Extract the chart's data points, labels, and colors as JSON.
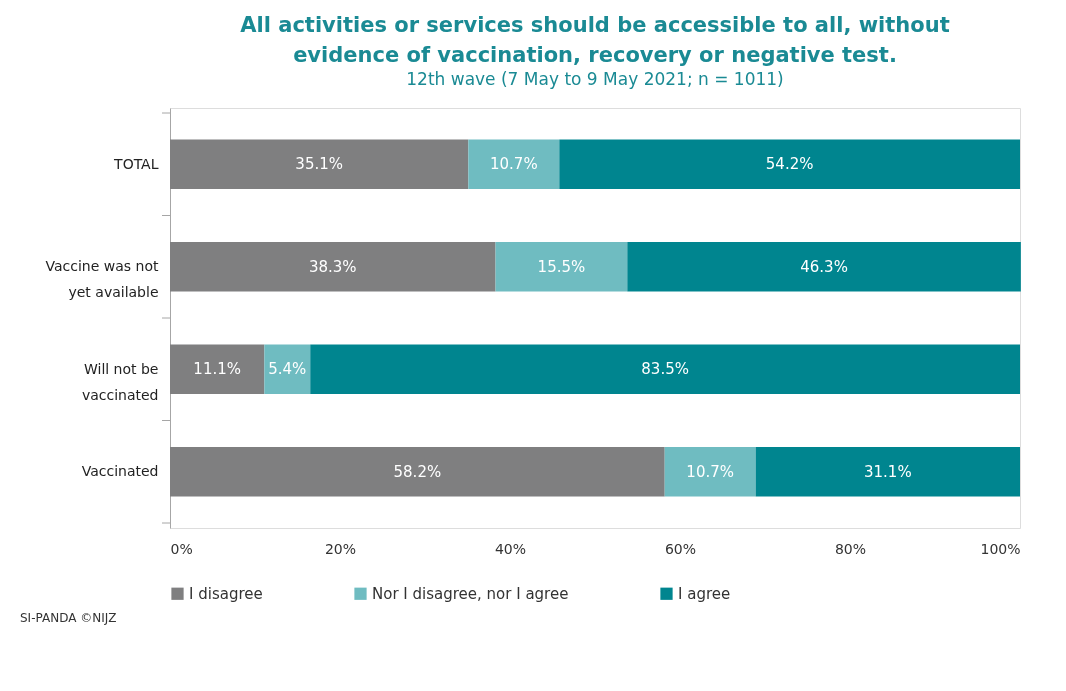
{
  "chart_data": {
    "type": "bar",
    "orientation": "horizontal",
    "stacked": true,
    "title": "All activities or services should be accessible to all, without evidence of vaccination, recovery or negative test.",
    "subtitle": "12th wave (7 May to 9 May 2021; n = 1011)",
    "categories": [
      "TOTAL",
      "Vaccine was not yet available",
      "Will not be vaccinated",
      "Vaccinated"
    ],
    "series": [
      {
        "name": "I disagree",
        "color": "#7f7f80",
        "values": [
          35.1,
          38.3,
          11.1,
          58.2
        ]
      },
      {
        "name": "Nor I disagree, nor I agree",
        "color": "#6fbcc1",
        "values": [
          10.7,
          15.5,
          5.4,
          10.7
        ]
      },
      {
        "name": "I agree",
        "color": "#00858f",
        "values": [
          54.2,
          46.3,
          83.5,
          31.1
        ]
      }
    ],
    "xlim": [
      0,
      100
    ],
    "xticks": [
      {
        "value": 0,
        "label": "0%"
      },
      {
        "value": 20,
        "label": "20%"
      },
      {
        "value": 40,
        "label": "40%"
      },
      {
        "value": 60,
        "label": "60%"
      },
      {
        "value": 80,
        "label": "80%"
      },
      {
        "value": 100,
        "label": "100%"
      }
    ],
    "value_labels": [
      [
        "35.1%",
        "38.3%",
        "11.1%",
        "58.2%"
      ],
      [
        "10.7%",
        "15.5%",
        "5.4%",
        "10.7%"
      ],
      [
        "54.2%",
        "46.3%",
        "83.5%",
        "31.1%"
      ]
    ],
    "legend": "bottom",
    "grid": false,
    "annotations": [
      "SI-PANDA ©NIJZ"
    ]
  }
}
